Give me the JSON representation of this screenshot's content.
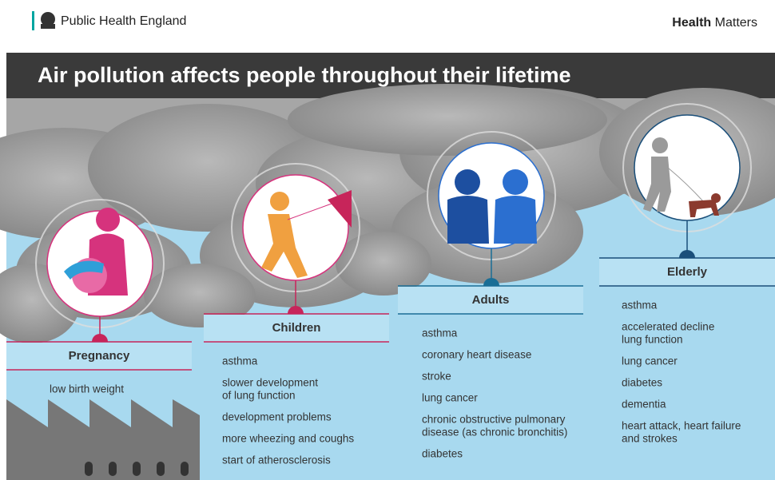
{
  "header": {
    "brand": "Public Health England",
    "tagline_bold": "Health",
    "tagline": "Matters"
  },
  "title": "Air pollution affects people throughout their lifetime",
  "stages": [
    {
      "label": "Pregnancy",
      "items": [
        [
          "low birth weight"
        ]
      ]
    },
    {
      "label": "Children",
      "items": [
        [
          "asthma"
        ],
        [
          "slower development",
          "of lung function"
        ],
        [
          "development problems"
        ],
        [
          "more wheezing and coughs"
        ],
        [
          "start of atherosclerosis"
        ]
      ]
    },
    {
      "label": "Adults",
      "items": [
        [
          "asthma"
        ],
        [
          "coronary heart disease"
        ],
        [
          "stroke"
        ],
        [
          "lung cancer"
        ],
        [
          "chronic obstructive pulmonary",
          "disease (as chronic bronchitis)"
        ],
        [
          "diabetes"
        ]
      ]
    },
    {
      "label": "Elderly",
      "items": [
        [
          "asthma"
        ],
        [
          "accelerated decline",
          "lung function"
        ],
        [
          "lung cancer"
        ],
        [
          "diabetes"
        ],
        [
          "dementia"
        ],
        [
          "heart attack, heart failure",
          "and strokes"
        ]
      ]
    }
  ]
}
